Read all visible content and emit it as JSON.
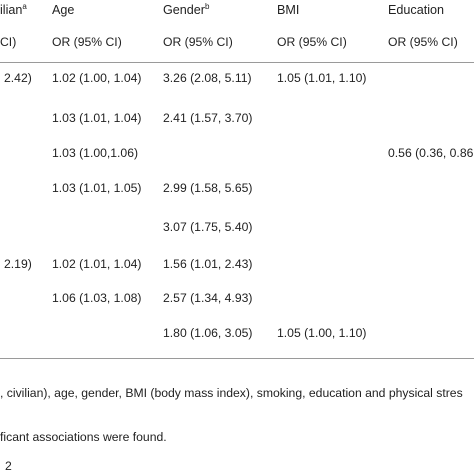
{
  "table": {
    "headers": [
      {
        "text": "ilian",
        "sup": "a"
      },
      {
        "text": "Age"
      },
      {
        "text": "Gender",
        "sup": "b"
      },
      {
        "text": "BMI"
      },
      {
        "text": "Education"
      }
    ],
    "subheaders": [
      "CI)",
      "OR (95% CI)",
      "OR (95% CI)",
      "OR (95% CI)",
      "OR (95% CI)"
    ],
    "rows": [
      [
        "2.42)",
        "1.02 (1.00, 1.04)",
        "3.26 (2.08, 5.11)",
        "1.05 (1.01, 1.10)",
        null
      ],
      [
        null,
        "1.03 (1.01, 1.04)",
        "2.41 (1.57, 3.70)",
        null,
        null
      ],
      [
        null,
        "1.03 (1.00,1.06)",
        null,
        null,
        "0.56 (0.36, 0.86"
      ],
      [
        null,
        "1.03 (1.01, 1.05)",
        "2.99 (1.58, 5.65)",
        null,
        null
      ],
      [
        null,
        null,
        "3.07 (1.75, 5.40)",
        null,
        null
      ],
      [
        "2.19)",
        "1.02 (1.01, 1.04)",
        "1.56 (1.01, 2.43)",
        null,
        null
      ],
      [
        null,
        "1.06 (1.03, 1.08)",
        "2.57 (1.34, 4.93)",
        null,
        null
      ],
      [
        null,
        null,
        "1.80 (1.06, 3.05)",
        "1.05 (1.00, 1.10)",
        null
      ]
    ]
  },
  "footnotes": [
    ", civilian), age, gender, BMI (body mass index), smoking, education and physical stres",
    "ficant associations were found.",
    "2"
  ]
}
